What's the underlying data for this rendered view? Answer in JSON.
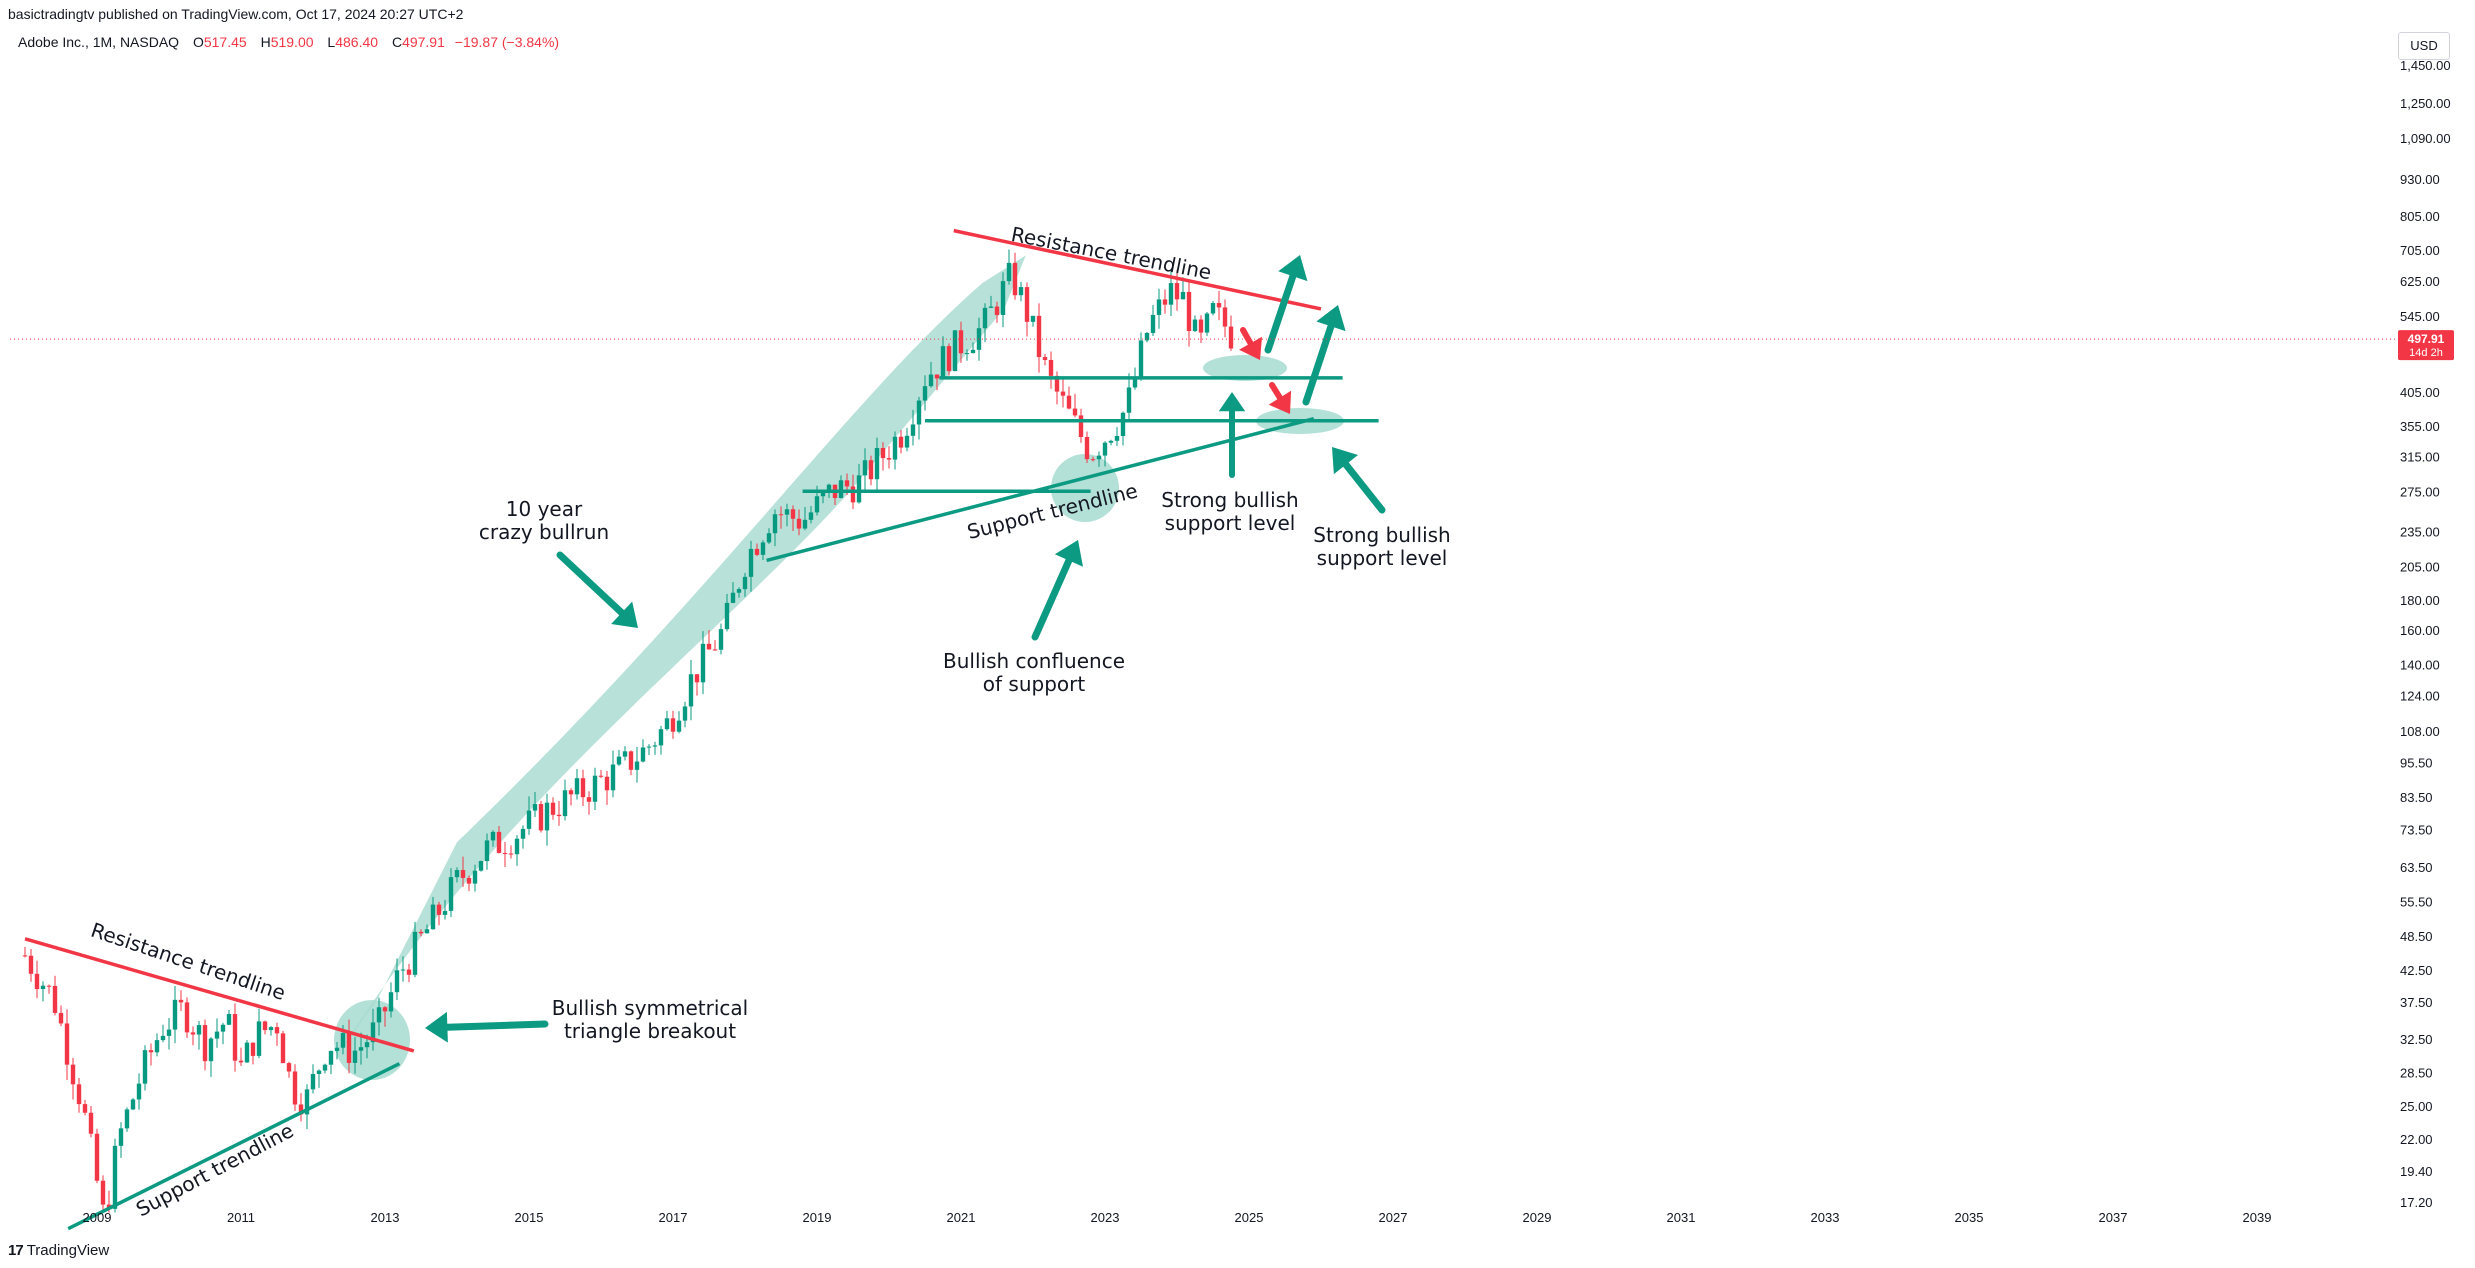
{
  "header": {
    "publisher": "basictradingtv published on TradingView.com, Oct 17, 2024 20:27 UTC+2",
    "symbol": "Adobe Inc., 1M, NASDAQ",
    "ohlc": [
      {
        "label": "O",
        "value": "517.45"
      },
      {
        "label": "H",
        "value": "519.00"
      },
      {
        "label": "L",
        "value": "486.40"
      },
      {
        "label": "C",
        "value": "497.91"
      },
      {
        "label": "",
        "value": "−19.87 (−3.84%)"
      }
    ],
    "currency": "USD"
  },
  "footer": {
    "logo_text": "TradingView",
    "logo_mark": "17"
  },
  "colors": {
    "up": "#089981",
    "down": "#f23645",
    "teal": "#0d9a82",
    "teal_fill": "#a6dbd0",
    "red_line": "#f23645",
    "grid_text": "#131722"
  },
  "chart_data": {
    "type": "candlestick",
    "title": "Adobe Inc., 1M, NASDAQ",
    "y_scale": "log",
    "y_ticks": [
      "1,450.00",
      "1,250.00",
      "1,090.00",
      "930.00",
      "805.00",
      "705.00",
      "625.00",
      "545.00",
      "405.00",
      "355.00",
      "315.00",
      "275.00",
      "235.00",
      "205.00",
      "180.00",
      "160.00",
      "140.00",
      "124.00",
      "108.00",
      "95.50",
      "83.50",
      "73.50",
      "63.50",
      "55.50",
      "48.50",
      "42.50",
      "37.50",
      "32.50",
      "28.50",
      "25.00",
      "22.00",
      "19.40",
      "17.20"
    ],
    "y_tick_values": [
      1450,
      1250,
      1090,
      930,
      805,
      705,
      625,
      545,
      405,
      355,
      315,
      275,
      235,
      205,
      180,
      160,
      140,
      124,
      108,
      95.5,
      83.5,
      73.5,
      63.5,
      55.5,
      48.5,
      42.5,
      37.5,
      32.5,
      28.5,
      25,
      22,
      19.4,
      17.2
    ],
    "ylim": [
      17.2,
      1450
    ],
    "x_ticks": [
      "2009",
      "2011",
      "2013",
      "2015",
      "2017",
      "2019",
      "2021",
      "2023",
      "2025",
      "2027",
      "2029",
      "2031",
      "2033",
      "2035",
      "2037",
      "2039"
    ],
    "xlim_years": [
      2008.0,
      2041.0
    ],
    "last_price": {
      "value": "497.91",
      "countdown": "14d 2h"
    },
    "price_path": [
      [
        2008.0,
        45.0
      ],
      [
        2008.4,
        38.0
      ],
      [
        2008.8,
        25.0
      ],
      [
        2009.1,
        16.0
      ],
      [
        2009.3,
        22.0
      ],
      [
        2009.6,
        28.0
      ],
      [
        2009.9,
        34.0
      ],
      [
        2010.2,
        36.5
      ],
      [
        2010.5,
        32.0
      ],
      [
        2010.8,
        35.0
      ],
      [
        2011.0,
        29.0
      ],
      [
        2011.2,
        33.0
      ],
      [
        2011.5,
        34.5
      ],
      [
        2011.7,
        27.0
      ],
      [
        2011.9,
        25.5
      ],
      [
        2012.2,
        32.0
      ],
      [
        2012.6,
        31.0
      ],
      [
        2012.9,
        34.0
      ],
      [
        2013.2,
        42.0
      ],
      [
        2013.6,
        50.0
      ],
      [
        2014.0,
        60.0
      ],
      [
        2014.4,
        68.0
      ],
      [
        2014.8,
        72.0
      ],
      [
        2015.3,
        80.0
      ],
      [
        2015.8,
        86.0
      ],
      [
        2016.2,
        92.0
      ],
      [
        2016.6,
        100.0
      ],
      [
        2016.9,
        110.0
      ],
      [
        2017.3,
        135.0
      ],
      [
        2017.7,
        160.0
      ],
      [
        2018.0,
        210.0
      ],
      [
        2018.4,
        255.0
      ],
      [
        2018.8,
        245.0
      ],
      [
        2019.2,
        275.0
      ],
      [
        2019.6,
        285.0
      ],
      [
        2019.9,
        315.0
      ],
      [
        2020.2,
        350.0
      ],
      [
        2020.5,
        430.0
      ],
      [
        2020.9,
        480.0
      ],
      [
        2021.3,
        520.0
      ],
      [
        2021.7,
        640.0
      ],
      [
        2021.9,
        560.0
      ],
      [
        2022.2,
        430.0
      ],
      [
        2022.5,
        370.0
      ],
      [
        2022.8,
        320.0
      ],
      [
        2023.0,
        340.0
      ],
      [
        2023.3,
        380.0
      ],
      [
        2023.6,
        520.0
      ],
      [
        2023.9,
        600.0
      ],
      [
        2024.1,
        580.0
      ],
      [
        2024.3,
        480.0
      ],
      [
        2024.5,
        550.0
      ],
      [
        2024.7,
        520.0
      ],
      [
        2024.8,
        497.91
      ]
    ],
    "trendlines": [
      {
        "name": "resistance-1",
        "color": "#f23645",
        "from": [
          2008.0,
          48.0
        ],
        "to": [
          2013.4,
          31.0
        ]
      },
      {
        "name": "support-1",
        "color": "#0d9a82",
        "from": [
          2008.6,
          15.5
        ],
        "to": [
          2013.2,
          29.5
        ]
      },
      {
        "name": "resistance-2",
        "color": "#f23645",
        "from": [
          2020.9,
          760.0
        ],
        "to": [
          2026.0,
          560.0
        ]
      },
      {
        "name": "support-2",
        "color": "#0d9a82",
        "from": [
          2018.3,
          210.0
        ],
        "to": [
          2025.9,
          365.0
        ]
      },
      {
        "name": "hline-425",
        "color": "#0d9a82",
        "from": [
          2020.7,
          428.0
        ],
        "to": [
          2026.3,
          428.0
        ]
      },
      {
        "name": "hline-362",
        "color": "#0d9a82",
        "from": [
          2020.5,
          362.0
        ],
        "to": [
          2026.8,
          362.0
        ]
      },
      {
        "name": "hline-275",
        "color": "#0d9a82",
        "from": [
          2018.8,
          275.0
        ],
        "to": [
          2022.8,
          275.0
        ]
      }
    ],
    "annotations": [
      {
        "name": "resistance-label-1",
        "text": "Resistance trendline"
      },
      {
        "name": "support-label-1",
        "text": "Support trendline"
      },
      {
        "name": "breakout-label",
        "lines": [
          "Bullish symmetrical",
          "triangle breakout"
        ]
      },
      {
        "name": "bullrun-label",
        "lines": [
          "10 year",
          "crazy bullrun"
        ]
      },
      {
        "name": "resistance-label-2",
        "text": "Resistance trendline"
      },
      {
        "name": "support-label-2",
        "text": "Support trendline"
      },
      {
        "name": "confluence-label",
        "lines": [
          "Bullish confluence",
          "of support"
        ]
      },
      {
        "name": "bullish-support-label-1",
        "lines": [
          "Strong bullish",
          "support level"
        ]
      },
      {
        "name": "bullish-support-label-2",
        "lines": [
          "Strong bullish",
          "support level"
        ]
      }
    ]
  }
}
